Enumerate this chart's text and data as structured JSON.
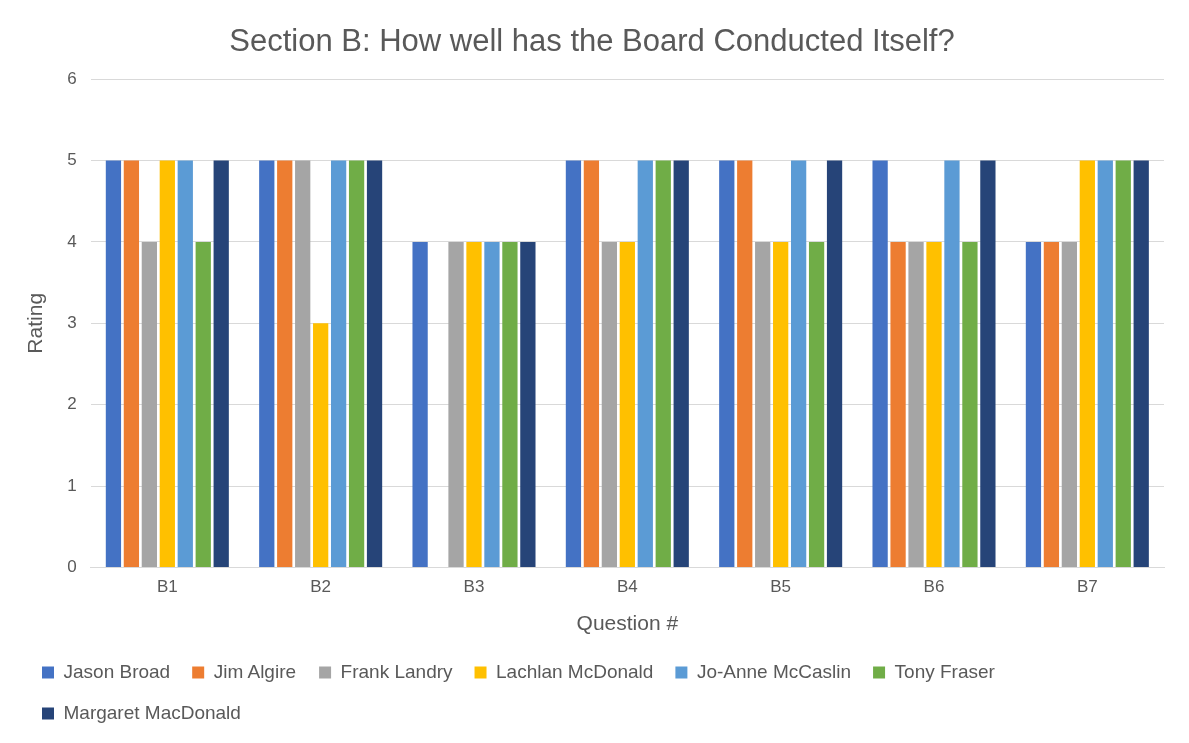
{
  "chart_data": {
    "type": "bar",
    "title": "Section B: How well has the Board Conducted Itself?",
    "xlabel": "Question #",
    "ylabel": "Rating",
    "categories": [
      "B1",
      "B2",
      "B3",
      "B4",
      "B5",
      "B6",
      "B7"
    ],
    "series": [
      {
        "name": "Jason Broad",
        "color": "#4472c4",
        "values": [
          5,
          5,
          4,
          5,
          5,
          5,
          4
        ]
      },
      {
        "name": "Jim Algire",
        "color": "#ed7d31",
        "values": [
          5,
          5,
          null,
          5,
          5,
          4,
          4
        ]
      },
      {
        "name": "Frank Landry",
        "color": "#a5a5a5",
        "values": [
          4,
          5,
          4,
          4,
          4,
          4,
          4
        ]
      },
      {
        "name": "Lachlan McDonald",
        "color": "#ffc000",
        "values": [
          5,
          3,
          4,
          4,
          4,
          4,
          5
        ]
      },
      {
        "name": "Jo-Anne McCaslin",
        "color": "#5b9bd5",
        "values": [
          5,
          5,
          4,
          5,
          5,
          5,
          5
        ]
      },
      {
        "name": "Tony Fraser",
        "color": "#70ad47",
        "values": [
          4,
          5,
          4,
          5,
          4,
          4,
          5
        ]
      },
      {
        "name": "Margaret MacDonald",
        "color": "#264478",
        "values": [
          5,
          5,
          4,
          5,
          5,
          5,
          5
        ]
      }
    ],
    "ylim": [
      0,
      6
    ],
    "yticks": [
      0,
      1,
      2,
      3,
      4,
      5,
      6
    ],
    "grid": "y",
    "legend": "bottom"
  }
}
